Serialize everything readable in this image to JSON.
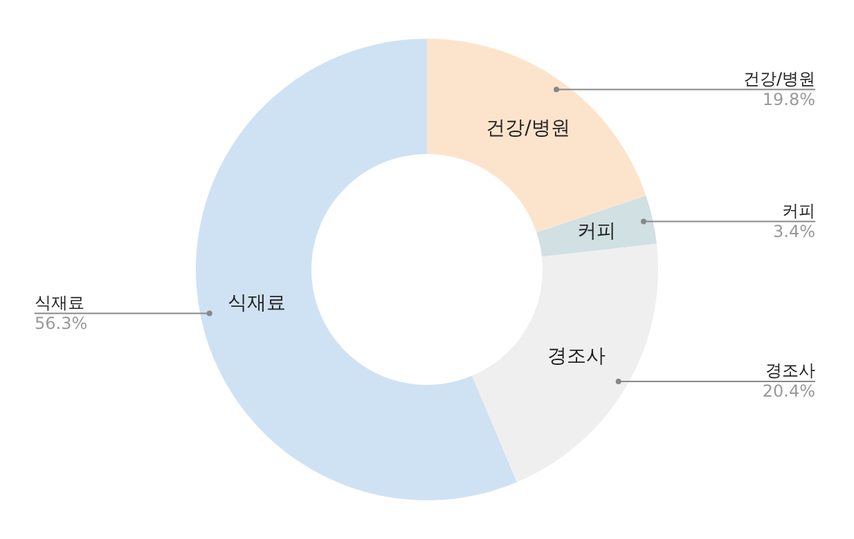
{
  "chart_data": {
    "type": "donut",
    "categories": [
      "건강/병원",
      "커피",
      "경조사",
      "식재료"
    ],
    "values": [
      19.8,
      3.4,
      20.4,
      56.3
    ],
    "colors": [
      "#fce4cc",
      "#d0e0e3",
      "#efefef",
      "#cfe2f3"
    ],
    "value_labels": [
      "19.8%",
      "3.4%",
      "20.4%",
      "56.3%"
    ],
    "legend": false
  }
}
